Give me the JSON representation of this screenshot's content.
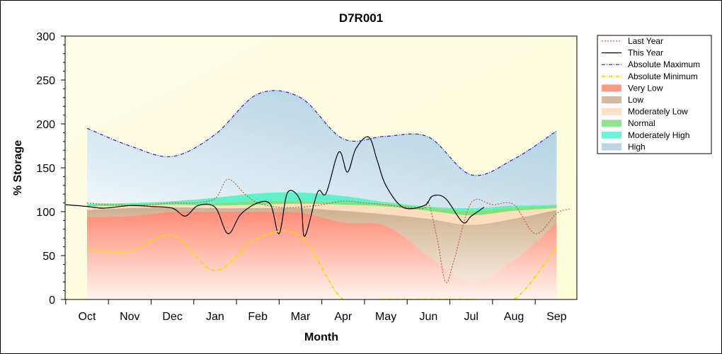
{
  "chart_data": {
    "type": "area",
    "title": "D7R001",
    "xlabel": "Month",
    "ylabel": "% Storage",
    "ylim": [
      0,
      300
    ],
    "yticks": [
      0,
      50,
      100,
      150,
      200,
      250,
      300
    ],
    "categories": [
      "Oct",
      "Nov",
      "Dec",
      "Jan",
      "Feb",
      "Mar",
      "Apr",
      "May",
      "Jun",
      "Jul",
      "Aug",
      "Sep"
    ],
    "legend_position": "right",
    "bands": [
      {
        "name": "Very Low",
        "color": "#ff7f6a",
        "lower": [
          0,
          0,
          0,
          0,
          0,
          0,
          0,
          0,
          0,
          0,
          0,
          0
        ],
        "upper": [
          94,
          95,
          100,
          100,
          100,
          99,
          88,
          84,
          50,
          20,
          45,
          88
        ]
      },
      {
        "name": "Low",
        "color": "#c8a888",
        "lower": [
          94,
          95,
          100,
          100,
          100,
          99,
          88,
          84,
          50,
          20,
          45,
          88
        ],
        "upper": [
          102,
          104,
          105,
          104,
          104,
          104,
          101,
          97,
          92,
          85,
          92,
          102
        ]
      },
      {
        "name": "Moderately Low",
        "color": "#ffd8b8",
        "lower": [
          102,
          104,
          105,
          104,
          104,
          104,
          101,
          97,
          92,
          85,
          92,
          102
        ],
        "upper": [
          106,
          107,
          108,
          107,
          108,
          109,
          108,
          106,
          101,
          96,
          101,
          104
        ]
      },
      {
        "name": "Normal",
        "color": "#70e070",
        "lower": [
          106,
          107,
          108,
          107,
          108,
          109,
          108,
          106,
          101,
          96,
          101,
          104
        ],
        "upper": [
          108,
          109,
          110,
          110,
          112,
          112,
          111,
          109,
          105,
          101,
          105,
          107
        ]
      },
      {
        "name": "Moderately High",
        "color": "#50f0c8",
        "lower": [
          108,
          109,
          110,
          110,
          112,
          112,
          111,
          109,
          105,
          101,
          105,
          107
        ],
        "upper": [
          109,
          110,
          112,
          116,
          121,
          122,
          118,
          111,
          106,
          104,
          107,
          108
        ]
      },
      {
        "name": "High",
        "color": "#a8cce4",
        "lower": [
          109,
          110,
          112,
          116,
          121,
          122,
          118,
          111,
          106,
          104,
          107,
          108
        ],
        "upper": [
          195,
          175,
          163,
          188,
          234,
          230,
          183,
          186,
          185,
          142,
          160,
          192
        ]
      }
    ],
    "series": [
      {
        "name": "Last Year",
        "color": "#c06040",
        "style": "dotted",
        "x": [
          0,
          0.5,
          1,
          1.5,
          2,
          2.5,
          3,
          3.3,
          3.7,
          4,
          4.5,
          5,
          5.5,
          6,
          6.5,
          7,
          7.5,
          7.9,
          8,
          8.2,
          8.4,
          8.6,
          9,
          9.5,
          10,
          10.5,
          11,
          11.3
        ],
        "y": [
          110,
          108,
          107,
          108,
          110,
          110,
          115,
          137,
          120,
          110,
          105,
          105,
          108,
          112,
          110,
          108,
          105,
          104,
          110,
          70,
          20,
          45,
          110,
          108,
          108,
          75,
          98,
          103
        ]
      },
      {
        "name": "This Year",
        "color": "#000000",
        "style": "solid",
        "x": [
          -0.5,
          0,
          0.4,
          1,
          1.5,
          2,
          2.3,
          2.6,
          3,
          3.3,
          3.6,
          4,
          4.3,
          4.5,
          4.7,
          5,
          5.1,
          5.4,
          5.6,
          5.9,
          6.1,
          6.3,
          6.6,
          6.8,
          7,
          7.4,
          7.9,
          8.1,
          8.4,
          8.8,
          9.0,
          9.3
        ],
        "y": [
          108,
          106,
          104,
          107,
          106,
          104,
          95,
          107,
          105,
          75,
          97,
          110,
          108,
          75,
          122,
          112,
          72,
          122,
          121,
          168,
          145,
          172,
          185,
          158,
          130,
          105,
          107,
          118,
          115,
          88,
          95,
          105
        ]
      },
      {
        "name": "Absolute Maximum",
        "color": "#2020e0",
        "style": "dashdot",
        "x": [
          0,
          1,
          2,
          3,
          4,
          5,
          6,
          7,
          8,
          9,
          10,
          11
        ],
        "y": [
          195,
          175,
          163,
          188,
          234,
          230,
          183,
          186,
          185,
          142,
          160,
          192
        ]
      },
      {
        "name": "Absolute Minimum",
        "color": "#f0e000",
        "style": "dashdot",
        "x": [
          0,
          1,
          2,
          3,
          4,
          5,
          6,
          7,
          8,
          9,
          10,
          11
        ],
        "y": [
          57,
          55,
          73,
          33,
          70,
          72,
          0,
          0,
          0,
          0,
          0,
          60
        ]
      }
    ]
  }
}
